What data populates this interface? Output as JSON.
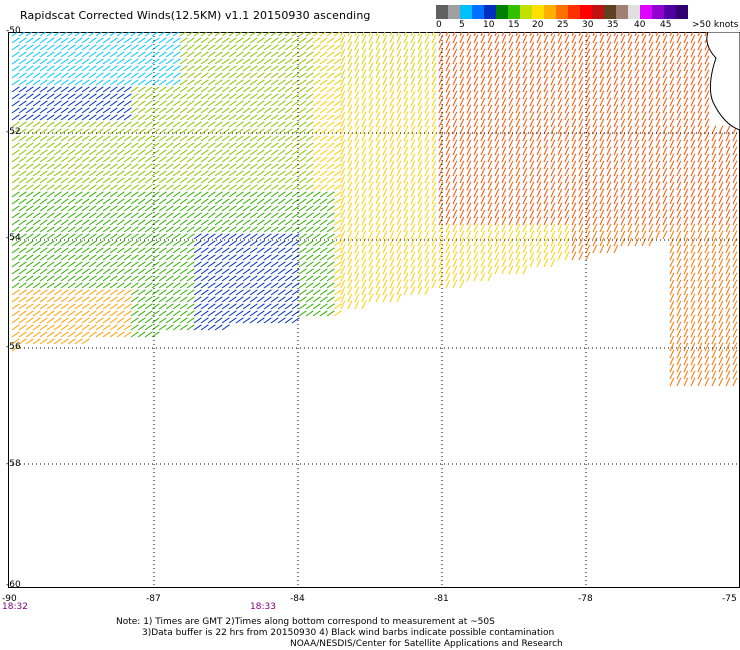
{
  "title": "Rapidscat Corrected Winds(12.5KM) v1.1 20150930 ascending",
  "colorbar": {
    "colors": [
      "#606060",
      "#a0a0a0",
      "#00c0ff",
      "#0070ff",
      "#0030c0",
      "#008000",
      "#30c000",
      "#c0e000",
      "#ffe000",
      "#ffb000",
      "#ff7000",
      "#ff3000",
      "#ff0000",
      "#c01010",
      "#604020",
      "#a08070",
      "#e0e0e0",
      "#e000ff",
      "#9000d0",
      "#5000a0",
      "#300070"
    ],
    "labels": [
      "0",
      "5",
      "10",
      "15",
      "20",
      "25",
      "30",
      "35",
      "40",
      "45",
      ">50 knots"
    ]
  },
  "axes": {
    "lon_labels": [
      "-90",
      "-87",
      "-84",
      "-81",
      "-78",
      "-75"
    ],
    "lat_labels": [
      "-50",
      "-52",
      "-54",
      "-56",
      "-58",
      "-60"
    ]
  },
  "times": [
    "18:32",
    "18:33"
  ],
  "notes": {
    "line1": "Note: 1) Times are GMT 2)Times along bottom correspond to measurement at ~50S",
    "line2": "3)Data buffer is 22 hrs from 20150930 4) Black wind barbs indicate possible contamination",
    "line3": "NOAA/NESDIS/Center for Satellite Applications and Research"
  },
  "wind_field": {
    "units": "knots",
    "bands": [
      {
        "region": "north-west",
        "speed_range": [
          10,
          15
        ],
        "color": "#00c0ff"
      },
      {
        "region": "west",
        "speed_range": [
          15,
          20
        ],
        "color": "#0030c0"
      },
      {
        "region": "central-west",
        "speed_range": [
          20,
          25
        ],
        "color": "#30c000"
      },
      {
        "region": "central",
        "speed_range": [
          25,
          30
        ],
        "color": "#ffe000"
      },
      {
        "region": "east",
        "speed_range": [
          30,
          35
        ],
        "color": "#ff3000"
      }
    ]
  }
}
